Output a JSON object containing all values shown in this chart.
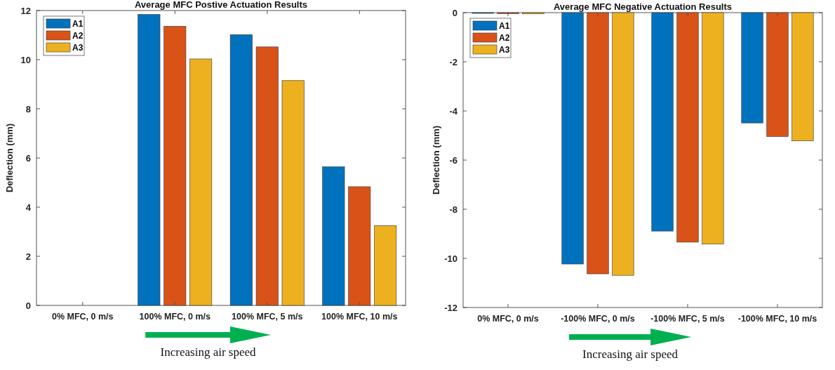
{
  "chart_data": [
    {
      "type": "bar",
      "title": "Average MFC Postive Actuation Results",
      "ylabel": "Deflection (mm)",
      "categories": [
        "0% MFC, 0 m/s",
        "100% MFC, 0 m/s",
        "100% MFC, 5 m/s",
        "100% MFC, 10 m/s"
      ],
      "series": [
        {
          "name": "A1",
          "color": "#0072bd",
          "values": [
            0,
            11.84,
            11.02,
            5.64
          ]
        },
        {
          "name": "A2",
          "color": "#d95319",
          "values": [
            0,
            11.36,
            10.52,
            4.83
          ]
        },
        {
          "name": "A3",
          "color": "#edb120",
          "values": [
            0,
            10.03,
            9.15,
            3.25
          ]
        }
      ],
      "ylim": [
        0,
        12
      ],
      "yticks": [
        0,
        2,
        4,
        6,
        8,
        10,
        12
      ],
      "legend": "top left",
      "grid": false,
      "annotations": [
        "Increasing air speed"
      ]
    },
    {
      "type": "bar",
      "title": "Average MFC Negative Actuation Results",
      "ylabel": "Deflection (mm)",
      "categories": [
        "0% MFC, 0 m/s",
        "-100% MFC, 0 m/s",
        "-100% MFC, 5 m/s",
        "-100% MFC, 10 m/s"
      ],
      "series": [
        {
          "name": "A1",
          "color": "#0072bd",
          "values": [
            -0.03,
            -10.23,
            -8.89,
            -4.49
          ]
        },
        {
          "name": "A2",
          "color": "#d95319",
          "values": [
            -0.04,
            -10.63,
            -9.34,
            -5.04
          ]
        },
        {
          "name": "A3",
          "color": "#edb120",
          "values": [
            -0.05,
            -10.69,
            -9.42,
            -5.22
          ]
        }
      ],
      "ylim": [
        -12,
        0
      ],
      "yticks": [
        -12,
        -10,
        -8,
        -6,
        -4,
        -2,
        0
      ],
      "legend": "top left",
      "grid": false,
      "annotations": [
        "Increasing air speed"
      ]
    }
  ]
}
